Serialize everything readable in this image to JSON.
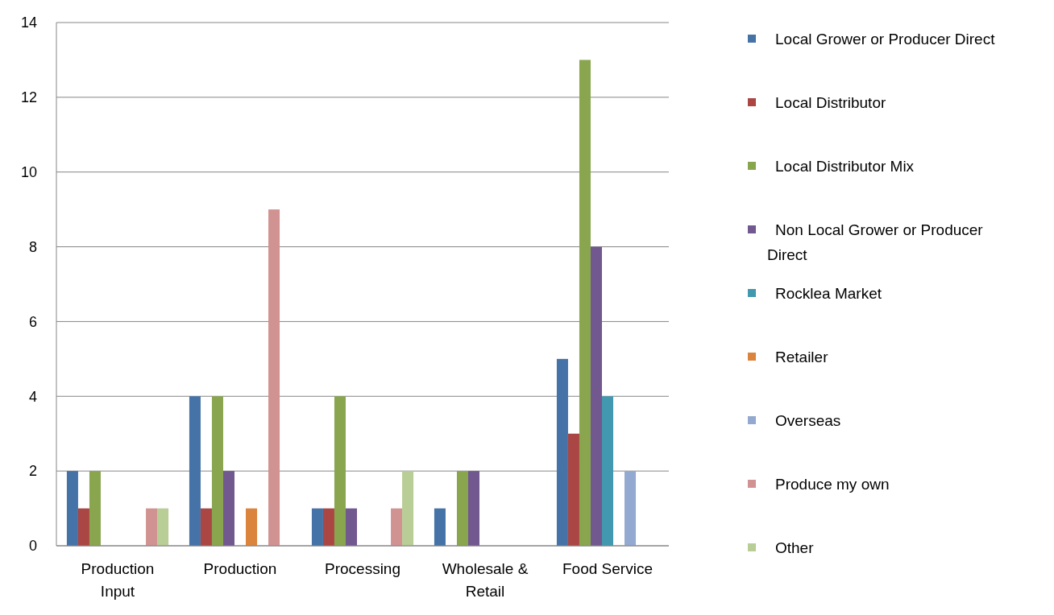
{
  "chart_data": {
    "type": "bar",
    "categories": [
      "Production Input",
      "Production",
      "Processing",
      "Wholesale & Retail",
      "Food Service"
    ],
    "series": [
      {
        "name": "Local Grower or Producer Direct",
        "color": "#4572a7",
        "values": [
          2,
          4,
          1,
          1,
          5
        ]
      },
      {
        "name": "Local Distributor",
        "color": "#aa4643",
        "values": [
          1,
          1,
          1,
          0,
          3
        ]
      },
      {
        "name": "Local Distributor Mix",
        "color": "#89a54e",
        "values": [
          2,
          4,
          4,
          2,
          13
        ]
      },
      {
        "name": "Non Local Grower or Producer Direct",
        "color": "#71588f",
        "values": [
          0,
          2,
          1,
          2,
          8
        ]
      },
      {
        "name": "Rocklea Market",
        "color": "#4198af",
        "values": [
          0,
          0,
          0,
          0,
          4
        ]
      },
      {
        "name": "Retailer",
        "color": "#db843d",
        "values": [
          0,
          1,
          0,
          0,
          0
        ]
      },
      {
        "name": "Overseas",
        "color": "#93a9cf",
        "values": [
          0,
          0,
          0,
          0,
          2
        ]
      },
      {
        "name": "Produce my own",
        "color": "#d19392",
        "values": [
          1,
          9,
          1,
          0,
          0
        ]
      },
      {
        "name": "Other",
        "color": "#b9cd96",
        "values": [
          1,
          0,
          2,
          0,
          0
        ]
      }
    ],
    "ylim": [
      0,
      14
    ],
    "yticks": [
      0,
      2,
      4,
      6,
      8,
      10,
      12,
      14
    ],
    "grid": "y",
    "legend": "right"
  }
}
